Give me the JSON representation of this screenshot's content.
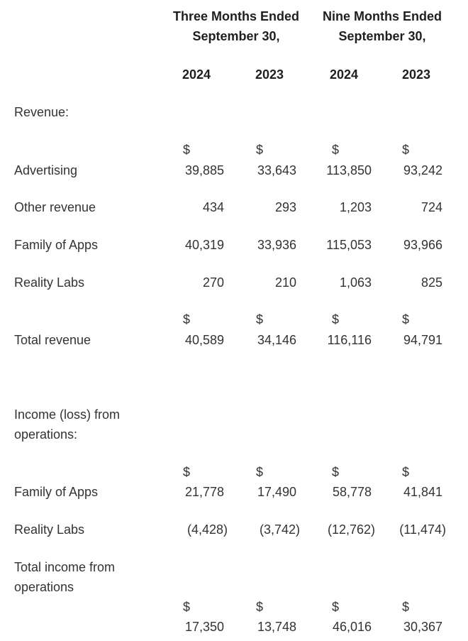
{
  "header": {
    "three_months": [
      "Three Months Ended",
      "September 30,"
    ],
    "nine_months": [
      "Nine Months Ended",
      "September 30,"
    ],
    "years": [
      "2024",
      "2023",
      "2024",
      "2023"
    ]
  },
  "currency_symbol": "$",
  "sections": {
    "revenue_label": "Revenue:",
    "ops_label_lines": [
      "Income (loss) from",
      "operations:"
    ],
    "total_ops_label_lines": [
      "Total income from",
      "operations"
    ]
  },
  "rows": {
    "advertising": {
      "label": "Advertising",
      "values": [
        "39,885",
        "33,643",
        "113,850",
        "93,242"
      ]
    },
    "other_revenue": {
      "label": "Other revenue",
      "values": [
        "434",
        "293",
        "1,203",
        "724"
      ]
    },
    "family_of_apps_rev": {
      "label": "Family of Apps",
      "values": [
        "40,319",
        "33,936",
        "115,053",
        "93,966"
      ]
    },
    "reality_labs_rev": {
      "label": "Reality Labs",
      "values": [
        "270",
        "210",
        "1,063",
        "825"
      ]
    },
    "total_revenue": {
      "label": "Total revenue",
      "values": [
        "40,589",
        "34,146",
        "116,116",
        "94,791"
      ]
    },
    "family_of_apps_ops": {
      "label": "Family of Apps",
      "values": [
        "21,778",
        "17,490",
        "58,778",
        "41,841"
      ]
    },
    "reality_labs_ops": {
      "label": "Reality Labs",
      "values": [
        "(4,428)",
        "(3,742)",
        "(12,762)",
        "(11,474)"
      ]
    },
    "total_ops": {
      "values": [
        "17,350",
        "13,748",
        "46,016",
        "30,367"
      ]
    }
  }
}
